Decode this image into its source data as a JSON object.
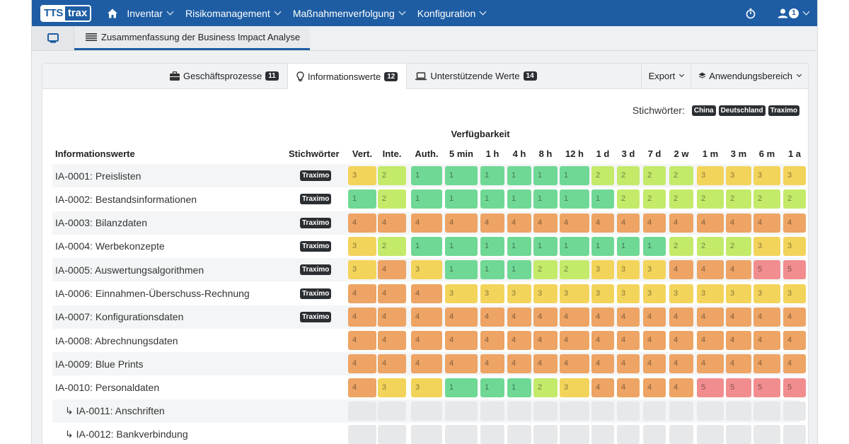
{
  "nav": {
    "logo_a": "TTS",
    "logo_b": "trax",
    "items": [
      "Inventar",
      "Risikomanagement",
      "Maßnahmenverfolgung",
      "Konfiguration"
    ],
    "user_badge": "1"
  },
  "tabs": {
    "active_label": "Zusammenfassung der Business Impact Analyse"
  },
  "card": {
    "tabs": [
      {
        "label": "Geschäftsprozesse",
        "count": "11"
      },
      {
        "label": "Informationswerte",
        "count": "12"
      },
      {
        "label": "Unterstützende Werte",
        "count": "14"
      }
    ],
    "export_label": "Export",
    "scope_label": "Anwendungsbereich",
    "keywords_label": "Stichwörter:",
    "keywords": [
      "China",
      "Deutschland",
      "Traximo"
    ]
  },
  "table": {
    "group_header": "Verfügbarkeit",
    "headers": [
      "Informationswerte",
      "Stichwörter",
      "Vert.",
      "Inte.",
      "Auth.",
      "5 min",
      "1 h",
      "4 h",
      "8 h",
      "12 h",
      "1 d",
      "3 d",
      "7 d",
      "2 w",
      "1 m",
      "3 m",
      "6 m",
      "1 a"
    ],
    "rows": [
      {
        "name": "IA-0001: Preislisten",
        "tag": "Traximo",
        "values": [
          3,
          2,
          1,
          1,
          1,
          1,
          1,
          1,
          2,
          2,
          2,
          2,
          3,
          3,
          3,
          3
        ]
      },
      {
        "name": "IA-0002: Bestandsinformationen",
        "tag": "Traximo",
        "values": [
          1,
          2,
          1,
          1,
          1,
          1,
          1,
          1,
          1,
          2,
          2,
          2,
          2,
          2,
          2,
          2
        ]
      },
      {
        "name": "IA-0003: Bilanzdaten",
        "tag": "Traximo",
        "values": [
          4,
          4,
          4,
          4,
          4,
          4,
          4,
          4,
          4,
          4,
          4,
          4,
          4,
          4,
          4,
          4
        ]
      },
      {
        "name": "IA-0004: Werbekonzepte",
        "tag": "Traximo",
        "values": [
          3,
          2,
          1,
          1,
          1,
          1,
          1,
          1,
          1,
          1,
          1,
          2,
          2,
          2,
          3,
          3
        ]
      },
      {
        "name": "IA-0005: Auswertungsalgorithmen",
        "tag": "Traximo",
        "values": [
          3,
          4,
          3,
          1,
          1,
          1,
          2,
          2,
          3,
          3,
          3,
          4,
          4,
          4,
          5,
          5
        ]
      },
      {
        "name": "IA-0006: Einnahmen-Überschuss-Rechnung",
        "tag": "Traximo",
        "values": [
          4,
          4,
          4,
          3,
          3,
          3,
          3,
          3,
          3,
          3,
          3,
          3,
          3,
          3,
          3,
          3
        ]
      },
      {
        "name": "IA-0007: Konfigurationsdaten",
        "tag": "Traximo",
        "values": [
          4,
          4,
          4,
          4,
          4,
          4,
          4,
          4,
          4,
          4,
          4,
          4,
          4,
          4,
          4,
          4
        ]
      },
      {
        "name": "IA-0008: Abrechnungsdaten",
        "tag": "",
        "values": [
          4,
          4,
          4,
          4,
          4,
          4,
          4,
          4,
          4,
          4,
          4,
          4,
          4,
          4,
          4,
          4
        ]
      },
      {
        "name": "IA-0009: Blue Prints",
        "tag": "",
        "values": [
          4,
          4,
          4,
          4,
          4,
          4,
          4,
          4,
          4,
          4,
          4,
          4,
          4,
          4,
          4,
          4
        ]
      },
      {
        "name": "IA-0010: Personaldaten",
        "tag": "",
        "values": [
          4,
          3,
          3,
          1,
          1,
          1,
          2,
          3,
          4,
          4,
          4,
          4,
          5,
          5,
          5,
          5
        ]
      },
      {
        "name": "↳ IA-0011: Anschriften",
        "tag": "",
        "sub": true,
        "values": [
          0,
          0,
          0,
          0,
          0,
          0,
          0,
          0,
          0,
          0,
          0,
          0,
          0,
          0,
          0,
          0
        ]
      },
      {
        "name": "↳ IA-0012: Bankverbindung",
        "tag": "",
        "sub": true,
        "values": [
          0,
          0,
          0,
          0,
          0,
          0,
          0,
          0,
          0,
          0,
          0,
          0,
          0,
          0,
          0,
          0
        ]
      }
    ]
  }
}
